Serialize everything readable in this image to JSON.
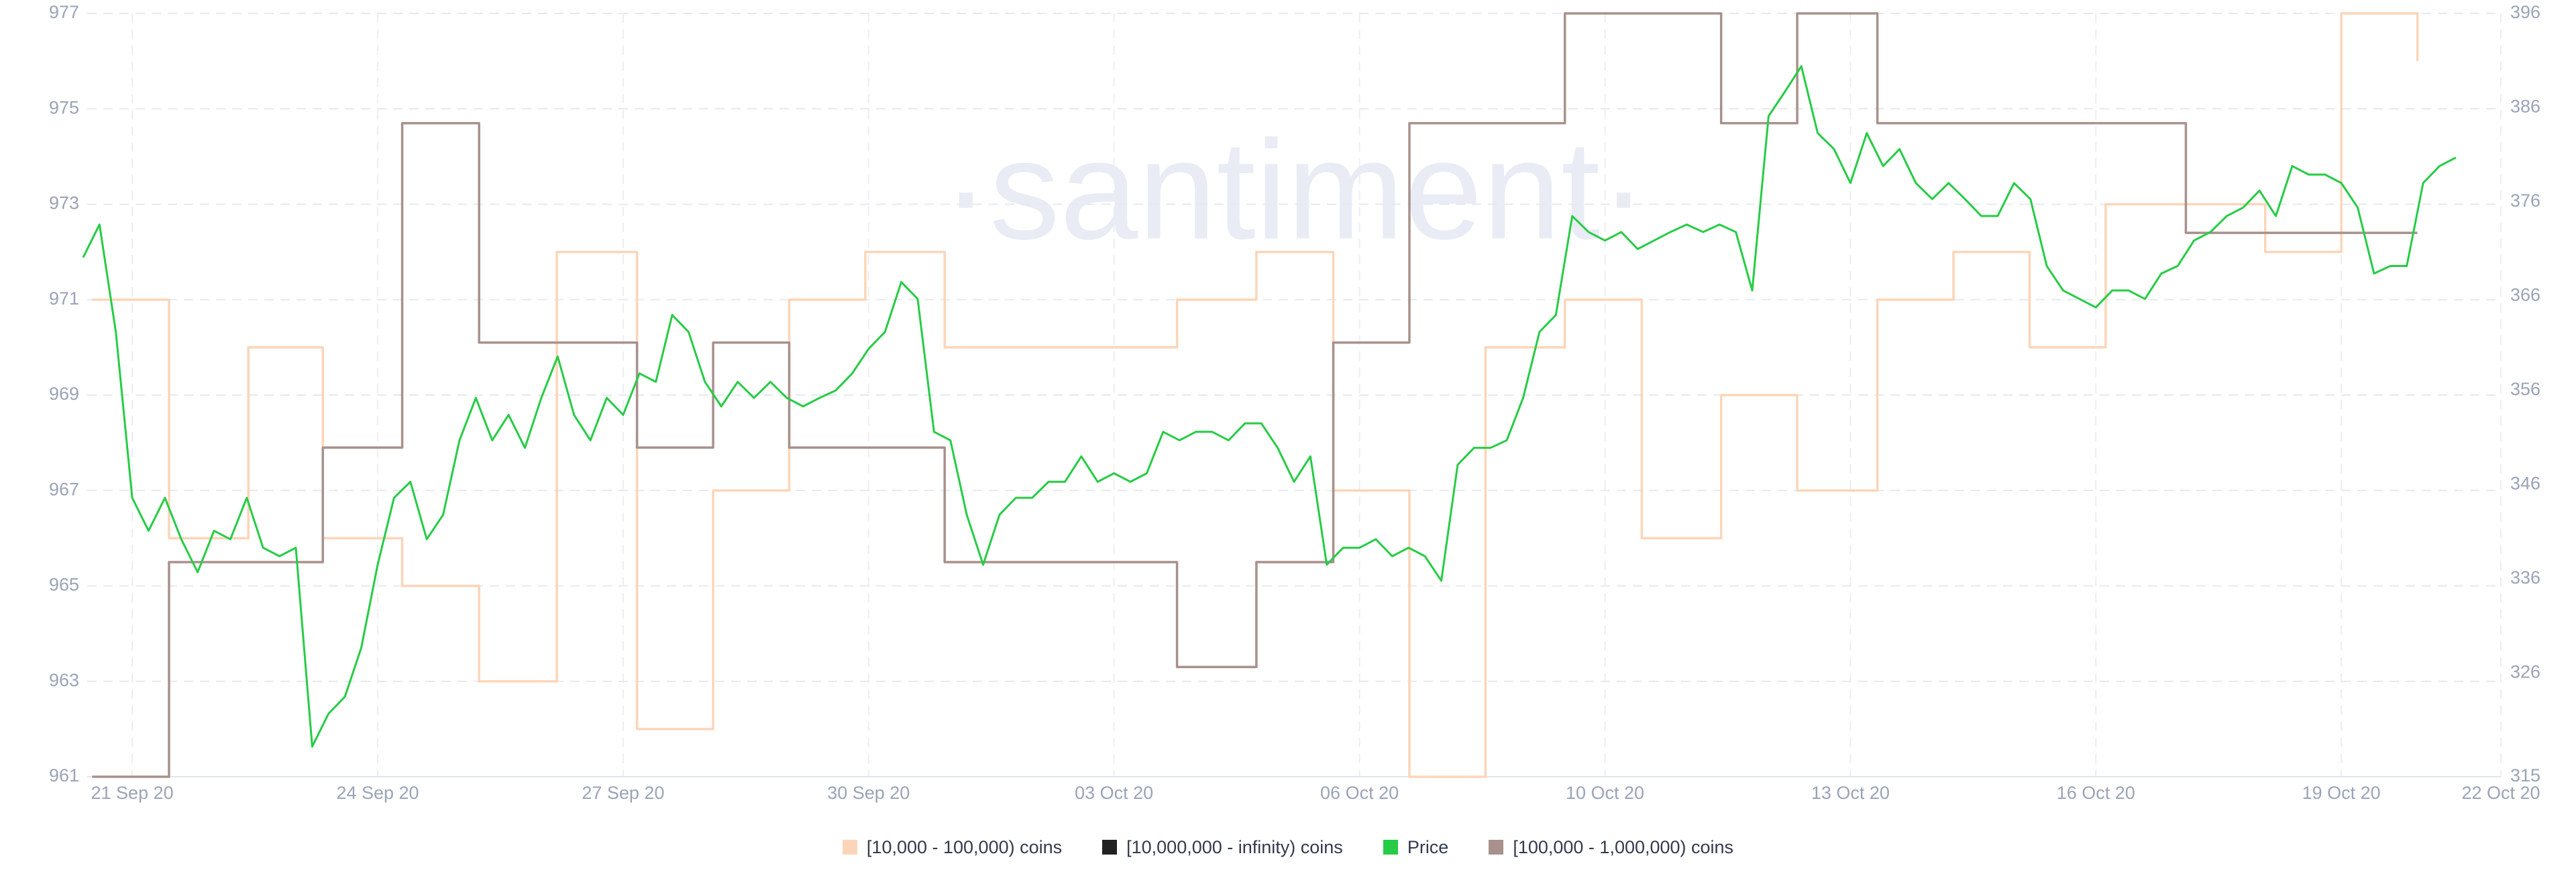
{
  "chart_data": {
    "type": "line",
    "watermark": "·santiment·",
    "xlim": [
      -0.55,
      28.95
    ],
    "xticks": [
      {
        "value": 0,
        "label": "21 Sep 20"
      },
      {
        "value": 3,
        "label": "24 Sep 20"
      },
      {
        "value": 6,
        "label": "27 Sep 20"
      },
      {
        "value": 9,
        "label": "30 Sep 20"
      },
      {
        "value": 12,
        "label": "03 Oct 20"
      },
      {
        "value": 15,
        "label": "06 Oct 20"
      },
      {
        "value": 18,
        "label": "10 Oct 20"
      },
      {
        "value": 21,
        "label": "13 Oct 20"
      },
      {
        "value": 24,
        "label": "16 Oct 20"
      },
      {
        "value": 27,
        "label": "19 Oct 20"
      },
      {
        "value": 28.95,
        "label": "22 Oct 20"
      }
    ],
    "ylim": [
      961,
      977
    ],
    "yticks": [
      961,
      963,
      965,
      967,
      969,
      971,
      973,
      975,
      977
    ],
    "y2lim": [
      315,
      396
    ],
    "y2ticks": [
      315,
      326,
      336,
      346,
      356,
      366,
      376,
      386,
      396
    ],
    "grid": true,
    "legend": "bottom",
    "series": [
      {
        "name": "[10,000 - 100,000) coins",
        "color": "#fcd5b8",
        "step": true,
        "x": [
          -0.49,
          0.45,
          1.42,
          2.33,
          3.3,
          4.24,
          5.19,
          6.17,
          7.1,
          8.03,
          8.96,
          9.93,
          12.77,
          13.74,
          14.68,
          15.61,
          16.54,
          17.51,
          18.45,
          19.42,
          20.35,
          21.33,
          22.26,
          23.19,
          24.12,
          26.07,
          27,
          27.93
        ],
        "values": [
          971,
          966,
          970,
          966,
          965,
          963,
          972,
          962,
          967,
          971,
          972,
          970,
          971,
          972,
          967,
          961,
          970,
          971,
          966,
          969,
          967,
          971,
          972,
          970,
          973,
          972,
          977,
          976
        ]
      },
      {
        "name": "[10,000,000 - infinity) coins",
        "color": "#222222"
      },
      {
        "name": "Price",
        "color": "#26cc45",
        "axis": "y2",
        "x": [
          -0.6,
          -0.4,
          -0.2,
          0,
          0.2,
          0.4,
          0.6,
          0.8,
          1,
          1.2,
          1.4,
          1.6,
          1.8,
          2,
          2.2,
          2.4,
          2.6,
          2.8,
          3,
          3.2,
          3.4,
          3.6,
          3.8,
          4,
          4.2,
          4.4,
          4.6,
          4.8,
          5,
          5.2,
          5.4,
          5.6,
          5.8,
          6,
          6.2,
          6.4,
          6.6,
          6.8,
          7,
          7.2,
          7.4,
          7.6,
          7.8,
          8,
          8.2,
          8.4,
          8.6,
          8.8,
          9,
          9.2,
          9.4,
          9.6,
          9.8,
          10,
          10.2,
          10.4,
          10.6,
          10.8,
          11,
          11.2,
          11.4,
          11.6,
          11.8,
          12,
          12.2,
          12.4,
          12.6,
          12.8,
          13,
          13.2,
          13.4,
          13.6,
          13.8,
          14,
          14.2,
          14.4,
          14.6,
          14.8,
          15,
          15.2,
          15.4,
          15.6,
          15.8,
          16,
          16.2,
          16.4,
          16.6,
          16.8,
          17,
          17.2,
          17.4,
          17.6,
          17.8,
          18,
          18.2,
          18.4,
          18.6,
          18.8,
          19,
          19.2,
          19.4,
          19.6,
          19.8,
          20,
          20.2,
          20.4,
          20.6,
          20.8,
          21,
          21.2,
          21.4,
          21.6,
          21.8,
          22,
          22.2,
          22.4,
          22.6,
          22.8,
          23,
          23.2,
          23.4,
          23.6,
          23.8,
          24,
          24.2,
          24.4,
          24.6,
          24.8,
          25,
          25.2,
          25.4,
          25.6,
          25.8,
          26,
          26.2,
          26.4,
          26.6,
          26.8,
          27,
          27.2,
          27.4,
          27.6,
          27.8,
          28,
          28.2,
          28.4
        ],
        "values": [
          370.1,
          373.6,
          362.2,
          344.6,
          341.1,
          344.6,
          340.2,
          336.7,
          341.1,
          340.2,
          344.6,
          339.3,
          338.4,
          339.3,
          318.2,
          321.7,
          323.5,
          328.7,
          337.5,
          344.6,
          346.3,
          340.2,
          342.8,
          350.7,
          355.2,
          350.7,
          353.4,
          349.9,
          355.2,
          359.6,
          353.4,
          350.7,
          355.2,
          353.4,
          357.8,
          356.9,
          364,
          362.2,
          356.9,
          354.3,
          356.9,
          355.2,
          356.9,
          355.2,
          354.3,
          355.2,
          356,
          357.8,
          360.4,
          362.2,
          367.5,
          365.7,
          351.6,
          350.7,
          342.8,
          337.5,
          342.8,
          344.6,
          344.6,
          346.3,
          346.3,
          349,
          346.3,
          347.2,
          346.3,
          347.2,
          351.6,
          350.7,
          351.6,
          351.6,
          350.7,
          352.5,
          352.5,
          349.9,
          346.3,
          349,
          337.5,
          339.3,
          339.3,
          340.2,
          338.4,
          339.3,
          338.4,
          335.8,
          348.1,
          349.9,
          349.9,
          350.7,
          355.2,
          362.2,
          364,
          374.5,
          372.8,
          371.9,
          372.8,
          371,
          371.9,
          372.8,
          373.6,
          372.8,
          373.6,
          372.8,
          366.6,
          385.1,
          387.7,
          390.4,
          383.3,
          381.6,
          378,
          383.3,
          379.8,
          381.6,
          378,
          376.3,
          378,
          376.3,
          374.5,
          374.5,
          378,
          376.3,
          369.2,
          366.6,
          365.7,
          364.8,
          366.6,
          366.6,
          365.7,
          368.4,
          369.2,
          371.9,
          372.8,
          374.5,
          375.4,
          377.2,
          374.5,
          379.8,
          378.9,
          378.9,
          378,
          375.4,
          368.4,
          369.2,
          369.2,
          378,
          379.8,
          380.7
        ]
      },
      {
        "name": "[100,000  - 1,000,000) coins",
        "color": "#a8918c",
        "step": true,
        "x": [
          -0.49,
          0.45,
          2.33,
          3.3,
          4.24,
          6.17,
          7.1,
          8.03,
          9.93,
          12.77,
          13.74,
          14.68,
          15.61,
          17.51,
          19.42,
          20.35,
          21.33,
          25.1,
          27.93
        ],
        "values": [
          961,
          965.5,
          967.9,
          974.7,
          970.1,
          967.9,
          970.1,
          967.9,
          965.5,
          963.3,
          965.5,
          970.1,
          974.7,
          977,
          974.7,
          977,
          974.7,
          972.4,
          972.4
        ]
      }
    ]
  }
}
